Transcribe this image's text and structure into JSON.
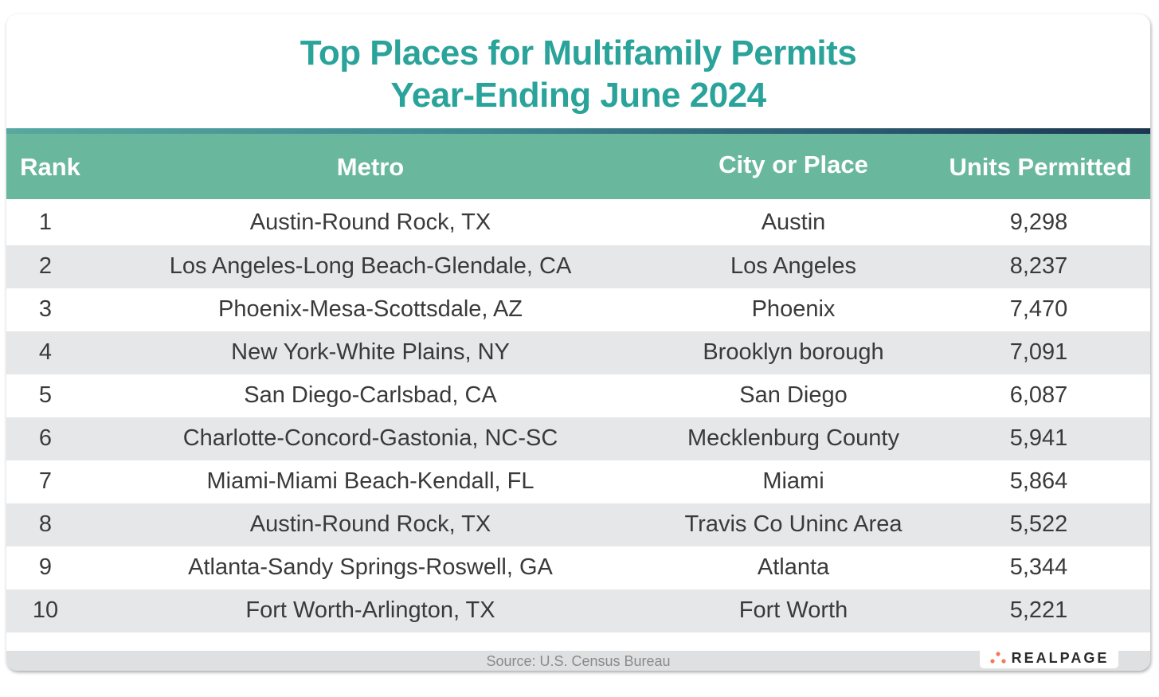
{
  "title": {
    "line1": "Top Places for Multifamily Permits",
    "line2": "Year-Ending June 2024"
  },
  "colors": {
    "title": "#2aa39a",
    "header_bg": "#69b89e",
    "alt_row": "#e6e7e8",
    "logo_dots": "#f07a55"
  },
  "columns": [
    "Rank",
    "Metro",
    "City or Place",
    "Units Permitted"
  ],
  "rows": [
    {
      "rank": "1",
      "metro": "Austin-Round Rock, TX",
      "city": "Austin",
      "units": "9,298"
    },
    {
      "rank": "2",
      "metro": "Los Angeles-Long Beach-Glendale, CA",
      "city": "Los Angeles",
      "units": "8,237"
    },
    {
      "rank": "3",
      "metro": "Phoenix-Mesa-Scottsdale, AZ",
      "city": "Phoenix",
      "units": "7,470"
    },
    {
      "rank": "4",
      "metro": "New York-White Plains, NY",
      "city": "Brooklyn borough",
      "units": "7,091"
    },
    {
      "rank": "5",
      "metro": "San Diego-Carlsbad, CA",
      "city": "San Diego",
      "units": "6,087"
    },
    {
      "rank": "6",
      "metro": "Charlotte-Concord-Gastonia, NC-SC",
      "city": "Mecklenburg County",
      "units": "5,941"
    },
    {
      "rank": "7",
      "metro": "Miami-Miami Beach-Kendall, FL",
      "city": "Miami",
      "units": "5,864"
    },
    {
      "rank": "8",
      "metro": "Austin-Round Rock, TX",
      "city": "Travis Co Uninc Area",
      "units": "5,522"
    },
    {
      "rank": "9",
      "metro": "Atlanta-Sandy Springs-Roswell, GA",
      "city": "Atlanta",
      "units": "5,344"
    },
    {
      "rank": "10",
      "metro": "Fort Worth-Arlington, TX",
      "city": "Fort Worth",
      "units": "5,221"
    }
  ],
  "footer": {
    "source": "Source: U.S. Census Bureau",
    "logo": "REALPAGE"
  }
}
